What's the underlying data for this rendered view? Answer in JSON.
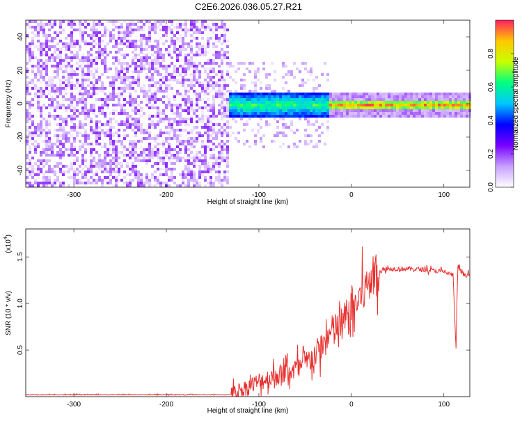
{
  "title": "C2E6.2026.036.05.27.R21",
  "chart_data": [
    {
      "type": "heatmap",
      "xlabel": "Height of straight line (km)",
      "ylabel": "Frequency (Hz)",
      "xlim": [
        -352,
        128
      ],
      "ylim": [
        -50,
        50
      ],
      "xticks": [
        -300,
        -200,
        -100,
        0,
        100
      ],
      "yticks": [
        -40,
        -20,
        0,
        20,
        40
      ],
      "grid": false,
      "colorbar": {
        "label": "Normalized spectral amplitude",
        "ticks": [
          0.0,
          0.2,
          0.4,
          0.6,
          0.8
        ],
        "range": [
          0,
          1
        ],
        "stops": [
          "#ffffff",
          "#c8a0ff",
          "#7800ff",
          "#0000ff",
          "#00c8ff",
          "#00ff80",
          "#c8ff00",
          "#ffc800",
          "#ff2060"
        ]
      },
      "regions": [
        {
          "x_range": [
            -352,
            -133
          ],
          "freq_range": [
            -50,
            50
          ],
          "amplitude_range": [
            0.02,
            0.22
          ],
          "pattern": "sparse noise"
        },
        {
          "x_range": [
            -133,
            -25
          ],
          "freq_range": [
            -8,
            8
          ],
          "amplitude_range": [
            0.2,
            0.7
          ],
          "pattern": "broad band"
        },
        {
          "x_range": [
            -25,
            128
          ],
          "freq_range": [
            -3,
            3
          ],
          "amplitude_range": [
            0.4,
            0.98
          ],
          "pattern": "narrow band"
        }
      ]
    },
    {
      "type": "line",
      "xlabel": "Height of straight line (km)",
      "ylabel": "SNR (10 * v/v)",
      "y_scale_label": "(x10",
      "y_scale_exp": "4",
      "xlim": [
        -352,
        128
      ],
      "ylim": [
        0,
        1.8
      ],
      "xticks": [
        -300,
        -200,
        -100,
        0,
        100
      ],
      "yticks": [
        0.5,
        1.0,
        1.5
      ],
      "grid": false,
      "series": [
        {
          "color": "#e8312f",
          "x": [
            -352,
            -300,
            -250,
            -200,
            -150,
            -130,
            -115,
            -100,
            -85,
            -70,
            -55,
            -40,
            -30,
            -20,
            -10,
            0,
            10,
            20,
            30,
            40,
            60,
            80,
            100,
            110,
            113,
            115,
            120,
            128
          ],
          "y": [
            0.02,
            0.02,
            0.02,
            0.02,
            0.02,
            0.02,
            0.08,
            0.15,
            0.2,
            0.25,
            0.3,
            0.42,
            0.55,
            0.68,
            0.75,
            0.9,
            1.05,
            1.22,
            1.34,
            1.37,
            1.37,
            1.36,
            1.34,
            1.3,
            0.5,
            1.4,
            1.31,
            1.3
          ]
        }
      ]
    }
  ]
}
